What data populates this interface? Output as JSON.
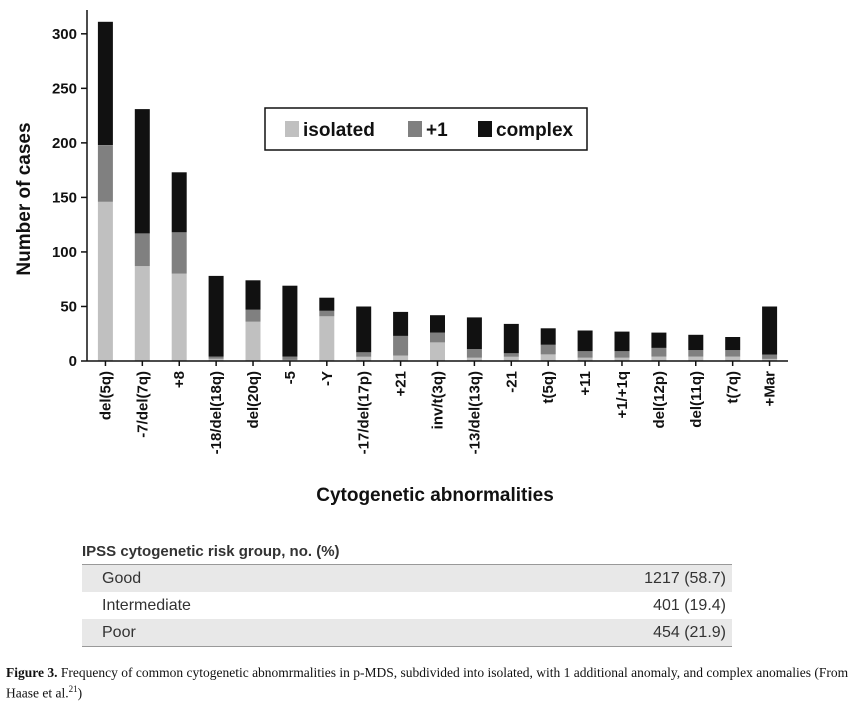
{
  "chart_data": {
    "type": "bar",
    "stacked": true,
    "categories": [
      "del(5q)",
      "-7/del(7q)",
      "+8",
      "-18/del(18q)",
      "del(20q)",
      "-5",
      "-Y",
      "-17/del(17p)",
      "+21",
      "inv/t(3q)",
      "-13/del(13q)",
      "-21",
      "t(5q)",
      "+11",
      "+1/+1q",
      "del(12p)",
      "del(11q)",
      "t(7q)",
      "+Mar"
    ],
    "series": [
      {
        "name": "isolated",
        "color": "#c0c0c0",
        "values": [
          146,
          87,
          80,
          2,
          36,
          1,
          41,
          4,
          5,
          17,
          3,
          4,
          6,
          3,
          3,
          4,
          4,
          4,
          2
        ]
      },
      {
        "name": "+1",
        "color": "#808080",
        "values": [
          52,
          30,
          38,
          2,
          11,
          3,
          5,
          4,
          18,
          9,
          8,
          3,
          9,
          6,
          6,
          8,
          6,
          6,
          4
        ]
      },
      {
        "name": "complex",
        "color": "#111111",
        "values": [
          113,
          114,
          55,
          74,
          27,
          65,
          12,
          42,
          22,
          16,
          29,
          27,
          15,
          19,
          18,
          14,
          14,
          12,
          44
        ]
      }
    ],
    "ylabel": "Number of cases",
    "xlabel": "Cytogenetic abnormalities",
    "ylim": [
      0,
      320
    ],
    "yticks": [
      0,
      50,
      100,
      150,
      200,
      250,
      300
    ],
    "legend_position": "top-right",
    "grid": false
  },
  "table": {
    "title": "IPSS cytogenetic risk group, no. (%)",
    "rows": [
      {
        "label": "Good",
        "value": "1217 (58.7)"
      },
      {
        "label": "Intermediate",
        "value": "401 (19.4)"
      },
      {
        "label": "Poor",
        "value": "454 (21.9)"
      }
    ]
  },
  "caption": {
    "figure_label": "Figure 3.",
    "text": " Frequency of common cytogenetic abnomrmalities in p-MDS, subdivided into isolated, with 1 additional anomaly, and complex anomalies (From Haase et al.",
    "ref": "21",
    "text_end": ")"
  }
}
